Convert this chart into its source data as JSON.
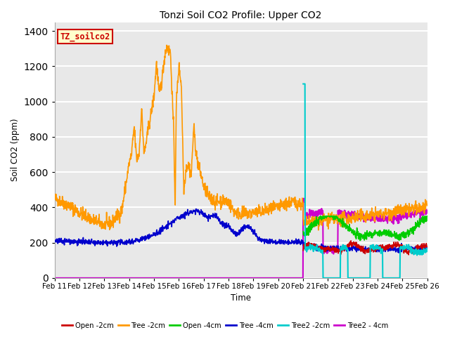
{
  "title": "Tonzi Soil CO2 Profile: Upper CO2",
  "xlabel": "Time",
  "ylabel": "Soil CO2 (ppm)",
  "ylim": [
    0,
    1450
  ],
  "plot_bg_color": "#e8e8e8",
  "label_box_text": "TZ_soilco2",
  "label_box_facecolor": "#ffffcc",
  "label_box_edgecolor": "#cc0000",
  "series": {
    "Open-2cm": {
      "color": "#cc0000",
      "lw": 1.2
    },
    "Tree-2cm": {
      "color": "#ff9900",
      "lw": 1.2
    },
    "Open-4cm": {
      "color": "#00cc00",
      "lw": 1.2
    },
    "Tree-4cm": {
      "color": "#0000cc",
      "lw": 1.2
    },
    "Tree2-2cm": {
      "color": "#00cccc",
      "lw": 1.5
    },
    "Tree2-4cm": {
      "color": "#cc00cc",
      "lw": 1.5
    }
  },
  "tick_labels": [
    "Feb 11",
    "Feb 12",
    "Feb 13",
    "Feb 14",
    "Feb 15",
    "Feb 16",
    "Feb 17",
    "Feb 18",
    "Feb 19",
    "Feb 20",
    "Feb 21",
    "Feb 22",
    "Feb 23",
    "Feb 24",
    "Feb 25",
    "Feb 26"
  ],
  "legend_labels": [
    "Open -2cm",
    "Tree -2cm",
    "Open -4cm",
    "Tree -4cm",
    "Tree2 -2cm",
    "Tree2 - 4cm"
  ],
  "legend_colors": [
    "#cc0000",
    "#ff9900",
    "#00cc00",
    "#0000cc",
    "#00cccc",
    "#cc00cc"
  ]
}
